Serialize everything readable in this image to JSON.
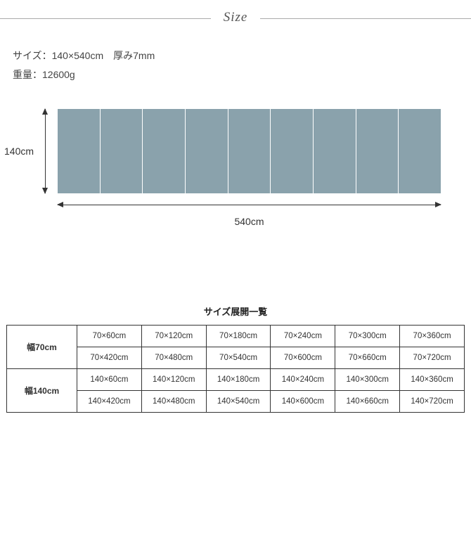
{
  "header": {
    "title": "Size"
  },
  "specs": {
    "line1": "サイズ：140×540cm　厚み7mm",
    "line2": "重量：12600g"
  },
  "diagram": {
    "height_label": "140cm",
    "width_label": "540cm",
    "panel_count": 9,
    "panel_color": "#8aa2ac",
    "arrow_color": "#333333"
  },
  "table": {
    "title": "サイズ展開一覧",
    "groups": [
      {
        "header": "幅70cm",
        "rows": [
          [
            "70×60cm",
            "70×120cm",
            "70×180cm",
            "70×240cm",
            "70×300cm",
            "70×360cm"
          ],
          [
            "70×420cm",
            "70×480cm",
            "70×540cm",
            "70×600cm",
            "70×660cm",
            "70×720cm"
          ]
        ]
      },
      {
        "header": "幅140cm",
        "rows": [
          [
            "140×60cm",
            "140×120cm",
            "140×180cm",
            "140×240cm",
            "140×300cm",
            "140×360cm"
          ],
          [
            "140×420cm",
            "140×480cm",
            "140×540cm",
            "140×600cm",
            "140×660cm",
            "140×720cm"
          ]
        ]
      }
    ]
  }
}
